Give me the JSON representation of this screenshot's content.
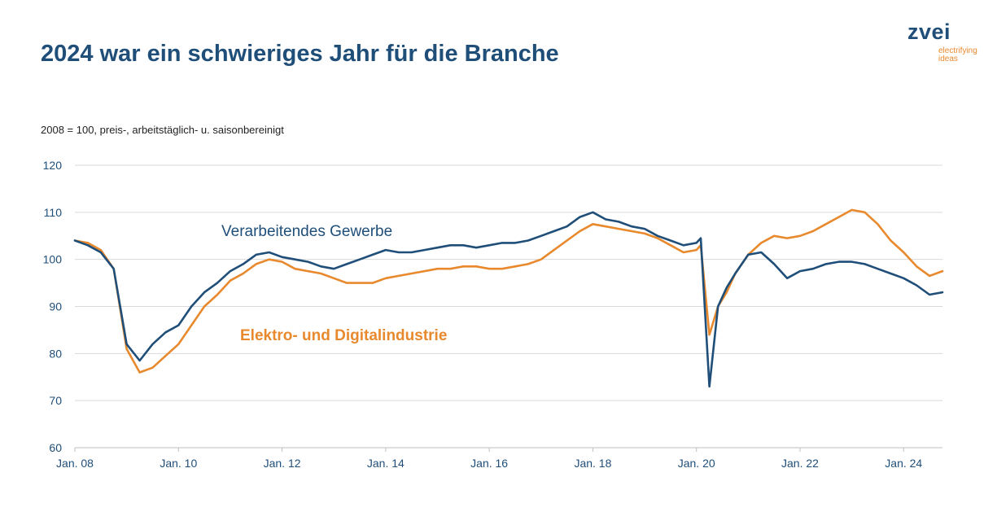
{
  "header": {
    "title": "2024 war ein schwieriges Jahr für die Branche"
  },
  "logo": {
    "word": "zvei",
    "tagline_1": "electrifying",
    "tagline_2": "ideas"
  },
  "chart_data": {
    "type": "line",
    "title": "2024 war ein schwieriges Jahr für die Branche",
    "subtitle": "2008 = 100, preis-, arbeitstäglich- u. saisonbereinigt",
    "xlabel": "",
    "ylabel": "",
    "ylim": [
      60,
      120
    ],
    "yticks": [
      60,
      70,
      80,
      90,
      100,
      110,
      120
    ],
    "x_range": [
      "2008-01",
      "2024-10"
    ],
    "xticks": [
      "Jan. 08",
      "Jan. 10",
      "Jan. 12",
      "Jan. 14",
      "Jan. 16",
      "Jan. 18",
      "Jan. 20",
      "Jan. 22",
      "Jan. 24"
    ],
    "grid": "horizontal",
    "legend": "inline labels",
    "colors": {
      "industrie": "#1f4e79",
      "elektro": "#e8892d"
    },
    "series": [
      {
        "name": "Verarbeitendes Gewerbe",
        "key": "industrie",
        "points": [
          [
            "2008-01",
            104
          ],
          [
            "2008-04",
            103
          ],
          [
            "2008-07",
            101.5
          ],
          [
            "2008-10",
            98
          ],
          [
            "2009-01",
            82
          ],
          [
            "2009-04",
            78.5
          ],
          [
            "2009-07",
            82
          ],
          [
            "2009-10",
            84.5
          ],
          [
            "2010-01",
            86
          ],
          [
            "2010-04",
            90
          ],
          [
            "2010-07",
            93
          ],
          [
            "2010-10",
            95
          ],
          [
            "2011-01",
            97.5
          ],
          [
            "2011-04",
            99
          ],
          [
            "2011-07",
            101
          ],
          [
            "2011-10",
            101.5
          ],
          [
            "2012-01",
            100.5
          ],
          [
            "2012-04",
            100
          ],
          [
            "2012-07",
            99.5
          ],
          [
            "2012-10",
            98.5
          ],
          [
            "2013-01",
            98
          ],
          [
            "2013-04",
            99
          ],
          [
            "2013-07",
            100
          ],
          [
            "2013-10",
            101
          ],
          [
            "2014-01",
            102
          ],
          [
            "2014-04",
            101.5
          ],
          [
            "2014-07",
            101.5
          ],
          [
            "2014-10",
            102
          ],
          [
            "2015-01",
            102.5
          ],
          [
            "2015-04",
            103
          ],
          [
            "2015-07",
            103
          ],
          [
            "2015-10",
            102.5
          ],
          [
            "2016-01",
            103
          ],
          [
            "2016-04",
            103.5
          ],
          [
            "2016-07",
            103.5
          ],
          [
            "2016-10",
            104
          ],
          [
            "2017-01",
            105
          ],
          [
            "2017-04",
            106
          ],
          [
            "2017-07",
            107
          ],
          [
            "2017-10",
            109
          ],
          [
            "2018-01",
            110
          ],
          [
            "2018-04",
            108.5
          ],
          [
            "2018-07",
            108
          ],
          [
            "2018-10",
            107
          ],
          [
            "2019-01",
            106.5
          ],
          [
            "2019-04",
            105
          ],
          [
            "2019-07",
            104
          ],
          [
            "2019-10",
            103
          ],
          [
            "2020-01",
            103.5
          ],
          [
            "2020-02",
            104.5
          ],
          [
            "2020-04",
            73
          ],
          [
            "2020-06",
            90
          ],
          [
            "2020-08",
            94
          ],
          [
            "2020-10",
            97
          ],
          [
            "2021-01",
            101
          ],
          [
            "2021-04",
            101.5
          ],
          [
            "2021-07",
            99
          ],
          [
            "2021-10",
            96
          ],
          [
            "2022-01",
            97.5
          ],
          [
            "2022-04",
            98
          ],
          [
            "2022-07",
            99
          ],
          [
            "2022-10",
            99.5
          ],
          [
            "2023-01",
            99.5
          ],
          [
            "2023-04",
            99
          ],
          [
            "2023-07",
            98
          ],
          [
            "2023-10",
            97
          ],
          [
            "2024-01",
            96
          ],
          [
            "2024-04",
            94.5
          ],
          [
            "2024-07",
            92.5
          ],
          [
            "2024-10",
            93
          ]
        ]
      },
      {
        "name": "Elektro- und Digitalindustrie",
        "key": "elektro",
        "points": [
          [
            "2008-01",
            104
          ],
          [
            "2008-04",
            103.5
          ],
          [
            "2008-07",
            102
          ],
          [
            "2008-10",
            98
          ],
          [
            "2009-01",
            81
          ],
          [
            "2009-04",
            76
          ],
          [
            "2009-07",
            77
          ],
          [
            "2009-10",
            79.5
          ],
          [
            "2010-01",
            82
          ],
          [
            "2010-04",
            86
          ],
          [
            "2010-07",
            90
          ],
          [
            "2010-10",
            92.5
          ],
          [
            "2011-01",
            95.5
          ],
          [
            "2011-04",
            97
          ],
          [
            "2011-07",
            99
          ],
          [
            "2011-10",
            100
          ],
          [
            "2012-01",
            99.5
          ],
          [
            "2012-04",
            98
          ],
          [
            "2012-07",
            97.5
          ],
          [
            "2012-10",
            97
          ],
          [
            "2013-01",
            96
          ],
          [
            "2013-04",
            95
          ],
          [
            "2013-07",
            95
          ],
          [
            "2013-10",
            95
          ],
          [
            "2014-01",
            96
          ],
          [
            "2014-04",
            96.5
          ],
          [
            "2014-07",
            97
          ],
          [
            "2014-10",
            97.5
          ],
          [
            "2015-01",
            98
          ],
          [
            "2015-04",
            98
          ],
          [
            "2015-07",
            98.5
          ],
          [
            "2015-10",
            98.5
          ],
          [
            "2016-01",
            98
          ],
          [
            "2016-04",
            98
          ],
          [
            "2016-07",
            98.5
          ],
          [
            "2016-10",
            99
          ],
          [
            "2017-01",
            100
          ],
          [
            "2017-04",
            102
          ],
          [
            "2017-07",
            104
          ],
          [
            "2017-10",
            106
          ],
          [
            "2018-01",
            107.5
          ],
          [
            "2018-04",
            107
          ],
          [
            "2018-07",
            106.5
          ],
          [
            "2018-10",
            106
          ],
          [
            "2019-01",
            105.5
          ],
          [
            "2019-04",
            104.5
          ],
          [
            "2019-07",
            103
          ],
          [
            "2019-10",
            101.5
          ],
          [
            "2020-01",
            102
          ],
          [
            "2020-02",
            103
          ],
          [
            "2020-04",
            84
          ],
          [
            "2020-06",
            90
          ],
          [
            "2020-08",
            93
          ],
          [
            "2020-10",
            97
          ],
          [
            "2021-01",
            101
          ],
          [
            "2021-04",
            103.5
          ],
          [
            "2021-07",
            105
          ],
          [
            "2021-10",
            104.5
          ],
          [
            "2022-01",
            105
          ],
          [
            "2022-04",
            106
          ],
          [
            "2022-07",
            107.5
          ],
          [
            "2022-10",
            109
          ],
          [
            "2023-01",
            110.5
          ],
          [
            "2023-04",
            110
          ],
          [
            "2023-07",
            107.5
          ],
          [
            "2023-10",
            104
          ],
          [
            "2024-01",
            101.5
          ],
          [
            "2024-04",
            98.5
          ],
          [
            "2024-07",
            96.5
          ],
          [
            "2024-10",
            97.5
          ]
        ]
      }
    ]
  }
}
